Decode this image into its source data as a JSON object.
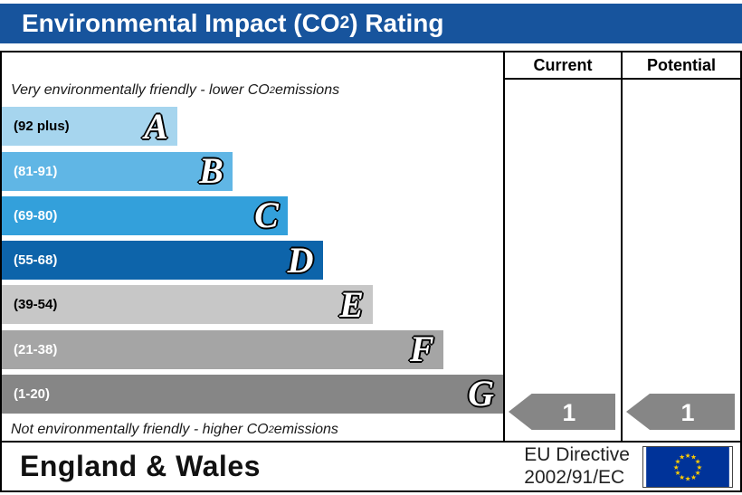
{
  "title": {
    "pre": "Environmental Impact (CO",
    "sub": "2",
    "post": ") Rating"
  },
  "header": {
    "current": "Current",
    "potential": "Potential"
  },
  "notes": {
    "top": {
      "pre": "Very environmentally friendly - lower CO",
      "sub": "2",
      "post": " emissions"
    },
    "bottom": {
      "pre": "Not environmentally friendly - higher CO",
      "sub": "2",
      "post": " emissions"
    }
  },
  "chart_data": {
    "type": "bar",
    "title": "Environmental Impact (CO2) Rating",
    "categories": [
      "A",
      "B",
      "C",
      "D",
      "E",
      "F",
      "G"
    ],
    "band_ranges": [
      "(92 plus)",
      "(81-91)",
      "(69-80)",
      "(55-68)",
      "(39-54)",
      "(21-38)",
      "(1-20)"
    ],
    "values": [
      35,
      46,
      57,
      64,
      74,
      88,
      100
    ],
    "current_rating": 1,
    "potential_rating": 1,
    "current_band": "G",
    "potential_band": "G"
  },
  "bands": [
    {
      "letter": "A",
      "range": "(92 plus)",
      "color": "#a6d5ee",
      "width_pct": 35,
      "range_color": "#000000"
    },
    {
      "letter": "B",
      "range": "(81-91)",
      "color": "#60b6e5",
      "width_pct": 46,
      "range_color": "#ffffff"
    },
    {
      "letter": "C",
      "range": "(69-80)",
      "color": "#33a0db",
      "width_pct": 57,
      "range_color": "#ffffff"
    },
    {
      "letter": "D",
      "range": "(55-68)",
      "color": "#0d64aa",
      "width_pct": 64,
      "range_color": "#ffffff"
    },
    {
      "letter": "E",
      "range": "(39-54)",
      "color": "#c7c7c7",
      "width_pct": 74,
      "range_color": "#000000"
    },
    {
      "letter": "F",
      "range": "(21-38)",
      "color": "#a5a5a5",
      "width_pct": 88,
      "range_color": "#ffffff"
    },
    {
      "letter": "G",
      "range": "(1-20)",
      "color": "#868686",
      "width_pct": 100,
      "range_color": "#ffffff"
    }
  ],
  "ratings": {
    "current": {
      "value": "1",
      "arrow_color": "#868686"
    },
    "potential": {
      "value": "1",
      "arrow_color": "#868686"
    }
  },
  "footer": {
    "region": "England & Wales",
    "directive_line1": "EU Directive",
    "directive_line2": "2002/91/EC"
  },
  "colors": {
    "title_bg": "#17549d",
    "title_fg": "#ffffff",
    "eu_flag_bg": "#003399",
    "eu_star": "#ffcc00"
  }
}
